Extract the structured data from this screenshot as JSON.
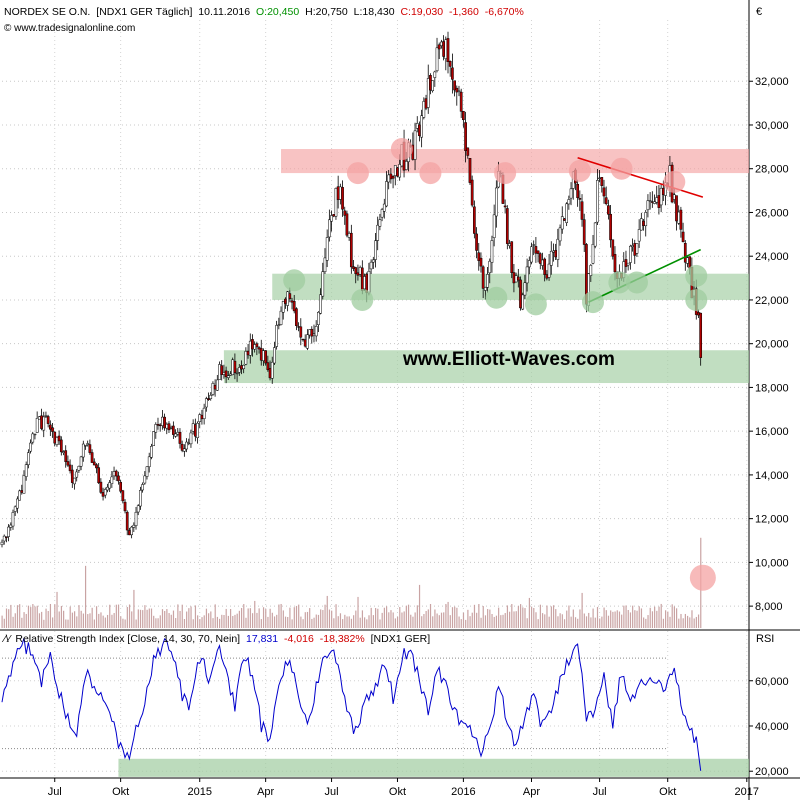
{
  "header": {
    "instrument": "NORDEX SE O.N.",
    "code_period": "[NDX1 GER  Täglich]",
    "date": "10.11.2016",
    "open": "O:20,450",
    "high": "H:20,750",
    "low": "L:18,430",
    "close": "C:19,030",
    "change": "-1,360",
    "change_pct": "-6,670%",
    "source": "© www.tradesignalonline.com",
    "currency": "€"
  },
  "watermark": "www.Elliott-Waves.com",
  "rsi_header": {
    "title": "Relative Strength Index [Close, 14, 30, 70, Nein]",
    "value": "17,831",
    "change": "-4,016",
    "change_pct": "-18,382%",
    "code": "[NDX1 GER]",
    "axis_label": "RSI"
  },
  "colors": {
    "resistance_zone": "#f4a3a3",
    "support_zone": "#9fcc9f",
    "resistance_line": "#e00000",
    "support_line": "#009000",
    "candle_up": "#ffffff",
    "candle_down": "#b00000",
    "rsi_line": "#0000cc",
    "volume": "#c9a3a3",
    "value_green": "#009000",
    "value_red": "#d00000"
  },
  "chart_data": [
    {
      "type": "candlestick",
      "ylim": [
        7.0,
        34.8
      ],
      "y_ticks": [
        "8,000",
        "10,000",
        "12,000",
        "14,000",
        "16,000",
        "18,000",
        "20,000",
        "22,000",
        "24,000",
        "26,000",
        "28,000",
        "30,000",
        "32,000"
      ],
      "y_tick_values": [
        8,
        10,
        12,
        14,
        16,
        18,
        20,
        22,
        24,
        26,
        28,
        30,
        32
      ],
      "x_ticks": [
        "Jul",
        "Okt",
        "2015",
        "Apr",
        "Jul",
        "Okt",
        "2016",
        "Apr",
        "Jul",
        "Okt",
        "2017"
      ],
      "x_tick_index": [
        24,
        54,
        90,
        120,
        150,
        180,
        210,
        241,
        272,
        303,
        339
      ],
      "close_path": [
        [
          0,
          10.8
        ],
        [
          8,
          13.0
        ],
        [
          16,
          16.4
        ],
        [
          20,
          16.5
        ],
        [
          26,
          15.4
        ],
        [
          32,
          13.6
        ],
        [
          38,
          15.4
        ],
        [
          46,
          13.2
        ],
        [
          52,
          14.2
        ],
        [
          58,
          11.1
        ],
        [
          64,
          13.7
        ],
        [
          70,
          16.2
        ],
        [
          76,
          16.4
        ],
        [
          82,
          15.3
        ],
        [
          90,
          16.4
        ],
        [
          98,
          18.6
        ],
        [
          104,
          18.9
        ],
        [
          110,
          19.2
        ],
        [
          116,
          20.2
        ],
        [
          122,
          18.6
        ],
        [
          128,
          22.4
        ],
        [
          132,
          21.7
        ],
        [
          138,
          20.0
        ],
        [
          144,
          21.3
        ],
        [
          150,
          25.9
        ],
        [
          154,
          27.3
        ],
        [
          160,
          23.3
        ],
        [
          166,
          22.7
        ],
        [
          170,
          24.4
        ],
        [
          176,
          27.4
        ],
        [
          182,
          28.5
        ],
        [
          186,
          28.7
        ],
        [
          192,
          30.9
        ],
        [
          198,
          33.5
        ],
        [
          204,
          33.0
        ],
        [
          210,
          30.2
        ],
        [
          214,
          26.1
        ],
        [
          220,
          22.1
        ],
        [
          226,
          27.9
        ],
        [
          232,
          23.7
        ],
        [
          236,
          22.1
        ],
        [
          242,
          24.4
        ],
        [
          248,
          23.0
        ],
        [
          256,
          26.0
        ],
        [
          260,
          28.2
        ],
        [
          264,
          26.0
        ],
        [
          266,
          22.1
        ],
        [
          272,
          28.0
        ],
        [
          276,
          26.0
        ],
        [
          280,
          22.8
        ],
        [
          284,
          23.6
        ],
        [
          290,
          24.9
        ],
        [
          296,
          26.5
        ],
        [
          300,
          26.8
        ],
        [
          304,
          27.6
        ],
        [
          308,
          25.5
        ],
        [
          312,
          23.7
        ],
        [
          315,
          22.0
        ],
        [
          317,
          21.2
        ],
        [
          318,
          19.0
        ]
      ],
      "volume": {
        "scale_max": 12,
        "typical": 2.0,
        "spikes": [
          [
            25,
            3.6
          ],
          [
            38,
            6.2
          ],
          [
            60,
            3.8
          ],
          [
            115,
            2.7
          ],
          [
            148,
            3.2
          ],
          [
            162,
            3.1
          ],
          [
            190,
            4.3
          ],
          [
            203,
            2.6
          ],
          [
            240,
            3.0
          ],
          [
            264,
            3.5
          ],
          [
            300,
            2.4
          ],
          [
            318,
            9.0
          ]
        ]
      },
      "zones": [
        {
          "kind": "resistance",
          "from": 27.8,
          "to": 28.9,
          "x_start": 127
        },
        {
          "kind": "support",
          "from": 22.0,
          "to": 23.2,
          "x_start": 123
        },
        {
          "kind": "support",
          "from": 18.2,
          "to": 19.7,
          "x_start": 101
        }
      ],
      "trendlines": [
        {
          "kind": "resistance",
          "from": [
            262,
            28.5
          ],
          "to": [
            319,
            26.7
          ]
        },
        {
          "kind": "support",
          "from": [
            267,
            21.9
          ],
          "to": [
            318,
            24.3
          ]
        }
      ],
      "touch_points": [
        {
          "kind": "top",
          "x": 162,
          "y": 27.8
        },
        {
          "kind": "top",
          "x": 182,
          "y": 28.9
        },
        {
          "kind": "top",
          "x": 195,
          "y": 27.8
        },
        {
          "kind": "top",
          "x": 229,
          "y": 27.8
        },
        {
          "kind": "top",
          "x": 263,
          "y": 27.9
        },
        {
          "kind": "top",
          "x": 282,
          "y": 28.0
        },
        {
          "kind": "top",
          "x": 306,
          "y": 27.4
        },
        {
          "kind": "bottom",
          "x": 133,
          "y": 22.9
        },
        {
          "kind": "bottom",
          "x": 164,
          "y": 22.0
        },
        {
          "kind": "bottom",
          "x": 225,
          "y": 22.1
        },
        {
          "kind": "bottom",
          "x": 243,
          "y": 21.8
        },
        {
          "kind": "bottom",
          "x": 269,
          "y": 21.9
        },
        {
          "kind": "bottom",
          "x": 281,
          "y": 22.8
        },
        {
          "kind": "bottom",
          "x": 289,
          "y": 22.8
        },
        {
          "kind": "bottom",
          "x": 316,
          "y": 23.1
        },
        {
          "kind": "bottom",
          "x": 316,
          "y": 22.0
        },
        {
          "kind": "volume-spike",
          "x": 319,
          "y": 9.3
        }
      ]
    },
    {
      "type": "line",
      "title": "Relative Strength Index",
      "ylim": [
        17,
        82
      ],
      "y_ticks": [
        "20,000",
        "40,000",
        "60,000"
      ],
      "y_tick_values": [
        20,
        40,
        60
      ],
      "levels": [
        30,
        70
      ],
      "series": [
        {
          "name": "RSI",
          "values_path": [
            [
              0,
              52
            ],
            [
              5,
              67
            ],
            [
              10,
              77
            ],
            [
              14,
              70
            ],
            [
              18,
              60
            ],
            [
              22,
              73
            ],
            [
              26,
              55
            ],
            [
              30,
              44
            ],
            [
              34,
              38
            ],
            [
              38,
              64
            ],
            [
              42,
              58
            ],
            [
              46,
              50
            ],
            [
              50,
              44
            ],
            [
              54,
              30
            ],
            [
              58,
              27
            ],
            [
              62,
              42
            ],
            [
              66,
              55
            ],
            [
              70,
              72
            ],
            [
              74,
              77
            ],
            [
              78,
              70
            ],
            [
              82,
              54
            ],
            [
              86,
              49
            ],
            [
              90,
              70
            ],
            [
              94,
              62
            ],
            [
              98,
              75
            ],
            [
              102,
              64
            ],
            [
              106,
              48
            ],
            [
              110,
              70
            ],
            [
              114,
              64
            ],
            [
              118,
              40
            ],
            [
              122,
              35
            ],
            [
              126,
              56
            ],
            [
              130,
              68
            ],
            [
              134,
              58
            ],
            [
              138,
              42
            ],
            [
              142,
              52
            ],
            [
              146,
              70
            ],
            [
              150,
              74
            ],
            [
              154,
              62
            ],
            [
              158,
              44
            ],
            [
              162,
              36
            ],
            [
              166,
              54
            ],
            [
              170,
              56
            ],
            [
              174,
              68
            ],
            [
              178,
              52
            ],
            [
              182,
              70
            ],
            [
              186,
              74
            ],
            [
              190,
              60
            ],
            [
              194,
              48
            ],
            [
              198,
              66
            ],
            [
              202,
              58
            ],
            [
              206,
              48
            ],
            [
              210,
              40
            ],
            [
              214,
              36
            ],
            [
              218,
              28
            ],
            [
              222,
              36
            ],
            [
              226,
              58
            ],
            [
              230,
              42
            ],
            [
              234,
              30
            ],
            [
              238,
              44
            ],
            [
              242,
              52
            ],
            [
              246,
              40
            ],
            [
              250,
              48
            ],
            [
              254,
              60
            ],
            [
              258,
              70
            ],
            [
              262,
              76
            ],
            [
              266,
              44
            ],
            [
              270,
              48
            ],
            [
              274,
              62
            ],
            [
              278,
              40
            ],
            [
              282,
              64
            ],
            [
              286,
              52
            ],
            [
              290,
              56
            ],
            [
              294,
              62
            ],
            [
              298,
              60
            ],
            [
              302,
              56
            ],
            [
              306,
              66
            ],
            [
              309,
              52
            ],
            [
              312,
              38
            ],
            [
              315,
              36
            ],
            [
              317,
              30
            ],
            [
              318,
              18
            ]
          ]
        }
      ],
      "zones": [
        {
          "kind": "support",
          "from": 17.5,
          "to": 25.5
        }
      ]
    }
  ]
}
